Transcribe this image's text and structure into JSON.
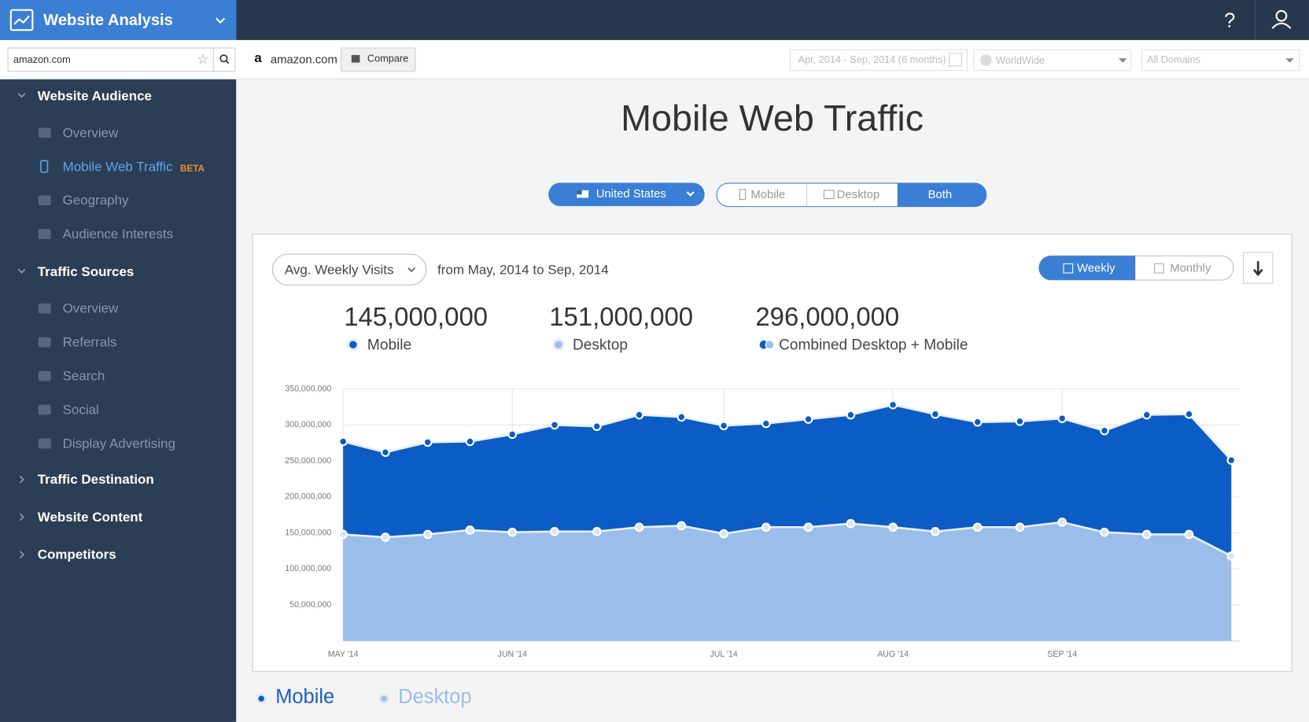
{
  "header": {
    "title": "Website Analysis",
    "help": "?"
  },
  "search": {
    "value": "amazon.com"
  },
  "toolbar": {
    "site": "amazon.com",
    "compare": "Compare",
    "date_range": "Apr, 2014 - Sep, 2014 (6 months)",
    "region": "WorldWide",
    "domains": "All Domains"
  },
  "sidebar": {
    "sections": [
      {
        "label": "Website Audience",
        "expanded": true,
        "items": [
          {
            "label": "Overview"
          },
          {
            "label": "Mobile Web Traffic",
            "badge": "BETA",
            "active": true
          },
          {
            "label": "Geography"
          },
          {
            "label": "Audience Interests"
          }
        ]
      },
      {
        "label": "Traffic Sources",
        "expanded": true,
        "items": [
          {
            "label": "Overview"
          },
          {
            "label": "Referrals"
          },
          {
            "label": "Search"
          },
          {
            "label": "Social"
          },
          {
            "label": "Display Advertising"
          }
        ]
      },
      {
        "label": "Traffic Destination"
      },
      {
        "label": "Website Content"
      },
      {
        "label": "Competitors"
      }
    ]
  },
  "page": {
    "title": "Mobile Web Traffic",
    "country": "United States",
    "device_tabs": [
      "Mobile",
      "Desktop",
      "Both"
    ]
  },
  "panel": {
    "metric": "Avg. Weekly Visits",
    "period": "from May, 2014 to Sep, 2014",
    "granularity": [
      "Weekly",
      "Monthly"
    ],
    "summary": [
      {
        "value": "145,000,000",
        "label": "Mobile"
      },
      {
        "value": "151,000,000",
        "label": "Desktop"
      },
      {
        "value": "296,000,000",
        "label": "Combined Desktop + Mobile"
      }
    ]
  },
  "chart_data": {
    "type": "stacked_area",
    "categories": [
      "MAY '14",
      null,
      null,
      null,
      "JUN '14",
      null,
      null,
      null,
      null,
      "JUL '14",
      null,
      null,
      null,
      "AUG '14",
      null,
      null,
      null,
      "SEP '14",
      null,
      null,
      null,
      null
    ],
    "series": [
      {
        "name": "Mobile",
        "color": "#0b5cc4",
        "values": [
          129000000,
          118000000,
          128000000,
          123000000,
          136000000,
          148000000,
          146000000,
          156000000,
          151000000,
          150000000,
          144000000,
          150000000,
          151000000,
          170000000,
          163000000,
          146000000,
          147000000,
          144000000,
          141000000,
          166000000,
          167000000,
          133000000
        ]
      },
      {
        "name": "Desktop",
        "color": "#9bbde9",
        "values": [
          148000000,
          144000000,
          148000000,
          154000000,
          151000000,
          152000000,
          152000000,
          158000000,
          160000000,
          149000000,
          158000000,
          158000000,
          163000000,
          158000000,
          152000000,
          158000000,
          158000000,
          165000000,
          151000000,
          148000000,
          148000000,
          118000000
        ]
      }
    ],
    "ylim": [
      0,
      350000000
    ],
    "yticks": [
      {
        "value": 50000000,
        "label": "50,000,000"
      },
      {
        "value": 100000000,
        "label": "100,000,000"
      },
      {
        "value": 150000000,
        "label": "150,000,000"
      },
      {
        "value": 200000000,
        "label": "200,000,000"
      },
      {
        "value": 250000000,
        "label": "250,000,000"
      },
      {
        "value": 300000000,
        "label": "300,000,000"
      },
      {
        "value": 350000000,
        "label": "350,000,000"
      }
    ],
    "grid": true
  }
}
